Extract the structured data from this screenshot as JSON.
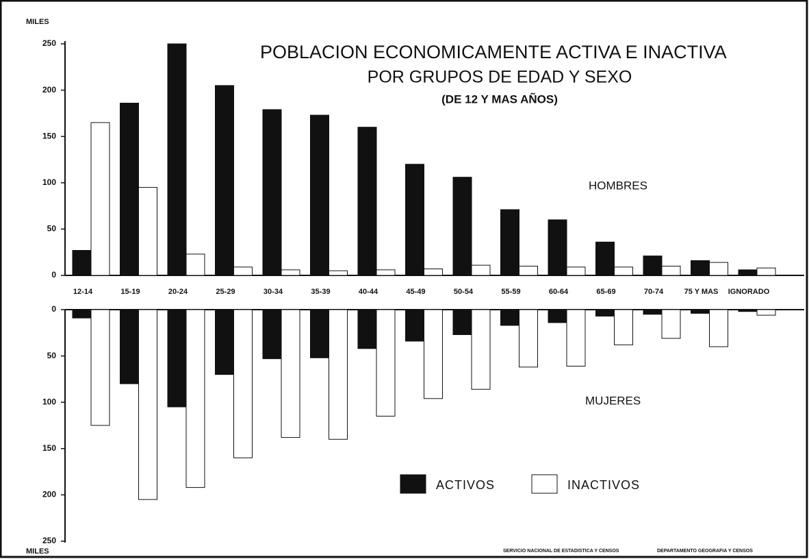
{
  "chart_data": [
    {
      "type": "bar",
      "title": "POBLACION ECONOMICAMENTE ACTIVA E INACTIVA",
      "subtitle": "POR GRUPOS DE EDAD Y SEXO",
      "note": "(DE 12 Y MAS AÑOS)",
      "panel_label": "HOMBRES",
      "y_label": "MILES",
      "categories": [
        "12-14",
        "15-19",
        "20-24",
        "25-29",
        "30-34",
        "35-39",
        "40-44",
        "45-49",
        "50-54",
        "55-59",
        "60-64",
        "65-69",
        "70-74",
        "75 Y MAS",
        "IGNORADO"
      ],
      "series": [
        {
          "name": "ACTIVOS",
          "color": "#111111",
          "values": [
            27,
            186,
            250,
            205,
            179,
            173,
            160,
            120,
            106,
            71,
            60,
            36,
            21,
            16,
            6
          ]
        },
        {
          "name": "INACTIVOS",
          "color": "#ffffff",
          "values": [
            165,
            95,
            23,
            9,
            6,
            5,
            6,
            7,
            11,
            10,
            9,
            9,
            10,
            14,
            8
          ]
        }
      ],
      "ylim": [
        0,
        250
      ],
      "yticks": [
        0,
        50,
        100,
        150,
        200,
        250
      ]
    },
    {
      "type": "bar",
      "panel_label": "MUJERES",
      "y_label": "MILES",
      "series": [
        {
          "color": "#111111",
          "values": [
            9,
            80,
            105,
            70,
            53,
            52,
            42,
            34,
            27,
            17,
            14,
            7,
            5,
            4,
            2
          ]
        },
        {
          "color": "#ffffff",
          "values": [
            125,
            205,
            192,
            160,
            138,
            140,
            115,
            96,
            86,
            62,
            61,
            38,
            31,
            40,
            6
          ]
        }
      ],
      "ylim": [
        0,
        250
      ],
      "yticks": [
        0,
        50,
        100,
        150,
        200,
        250
      ],
      "source": [
        "SERVICIO NACIONAL DE ESTADISTICA Y CENSOS",
        "DEPARTAMENTO GEOGRAFIA Y CENSOS"
      ]
    }
  ]
}
